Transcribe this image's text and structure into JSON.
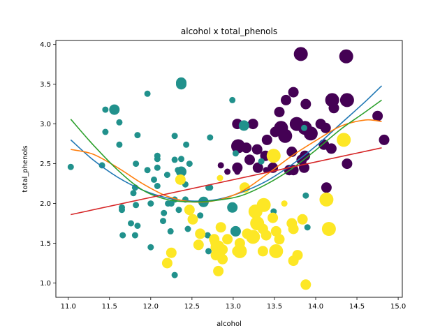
{
  "chart_data": {
    "type": "scatter",
    "title": "alcohol x total_phenols",
    "xlabel": "alcohol",
    "ylabel": "total_phenols",
    "xlim": [
      10.85,
      15.05
    ],
    "ylim": [
      0.82,
      4.05
    ],
    "xticks": [
      11.0,
      11.5,
      12.0,
      12.5,
      13.0,
      13.5,
      14.0,
      14.5,
      15.0
    ],
    "xtick_labels": [
      "11.0",
      "11.5",
      "12.0",
      "12.5",
      "13.0",
      "13.5",
      "14.0",
      "14.5",
      "15.0"
    ],
    "yticks": [
      1.0,
      1.5,
      2.0,
      2.5,
      3.0,
      3.5,
      4.0
    ],
    "ytick_labels": [
      "1.0",
      "1.5",
      "2.0",
      "2.5",
      "3.0",
      "3.5",
      "4.0"
    ],
    "grid": false,
    "legend": "none",
    "size_scale": "marker size varies per point",
    "series": [
      {
        "color": "#440154",
        "points": [
          {
            "x": 13.82,
            "y": 3.88,
            "s": "l"
          },
          {
            "x": 14.37,
            "y": 3.85,
            "s": "l"
          },
          {
            "x": 13.73,
            "y": 3.4,
            "s": "m"
          },
          {
            "x": 13.64,
            "y": 3.3,
            "s": "m"
          },
          {
            "x": 14.2,
            "y": 3.3,
            "s": "l"
          },
          {
            "x": 14.38,
            "y": 3.3,
            "s": "l"
          },
          {
            "x": 13.88,
            "y": 3.25,
            "s": "m"
          },
          {
            "x": 14.22,
            "y": 3.2,
            "s": "m"
          },
          {
            "x": 13.56,
            "y": 3.15,
            "s": "m"
          },
          {
            "x": 14.75,
            "y": 3.1,
            "s": "m"
          },
          {
            "x": 13.05,
            "y": 3.0,
            "s": "m"
          },
          {
            "x": 13.24,
            "y": 3.0,
            "s": "m"
          },
          {
            "x": 13.58,
            "y": 2.95,
            "s": "l"
          },
          {
            "x": 13.77,
            "y": 3.0,
            "s": "l"
          },
          {
            "x": 13.87,
            "y": 2.95,
            "s": "l"
          },
          {
            "x": 14.06,
            "y": 3.0,
            "s": "m"
          },
          {
            "x": 14.12,
            "y": 2.95,
            "s": "m"
          },
          {
            "x": 13.94,
            "y": 2.88,
            "s": "l"
          },
          {
            "x": 13.51,
            "y": 2.9,
            "s": "m"
          },
          {
            "x": 13.63,
            "y": 2.85,
            "s": "l"
          },
          {
            "x": 13.41,
            "y": 2.8,
            "s": "m"
          },
          {
            "x": 14.83,
            "y": 2.8,
            "s": "m"
          },
          {
            "x": 14.1,
            "y": 2.74,
            "s": "m"
          },
          {
            "x": 13.06,
            "y": 2.72,
            "s": "l"
          },
          {
            "x": 13.16,
            "y": 2.7,
            "s": "m"
          },
          {
            "x": 13.29,
            "y": 2.68,
            "s": "m"
          },
          {
            "x": 14.19,
            "y": 2.69,
            "s": "m"
          },
          {
            "x": 13.71,
            "y": 2.65,
            "s": "m"
          },
          {
            "x": 13.39,
            "y": 2.6,
            "s": "m"
          },
          {
            "x": 13.87,
            "y": 2.6,
            "s": "m"
          },
          {
            "x": 13.83,
            "y": 2.55,
            "s": "m"
          },
          {
            "x": 13.2,
            "y": 2.55,
            "s": "m"
          },
          {
            "x": 14.38,
            "y": 2.5,
            "s": "m"
          },
          {
            "x": 13.3,
            "y": 2.45,
            "s": "m"
          },
          {
            "x": 13.05,
            "y": 2.45,
            "s": "m"
          },
          {
            "x": 13.48,
            "y": 2.45,
            "s": "m"
          },
          {
            "x": 13.86,
            "y": 2.45,
            "s": "m"
          },
          {
            "x": 12.85,
            "y": 2.48,
            "s": "s"
          },
          {
            "x": 13.68,
            "y": 2.42,
            "s": "m"
          },
          {
            "x": 12.93,
            "y": 2.4,
            "s": "s"
          },
          {
            "x": 13.05,
            "y": 2.4,
            "s": "s"
          },
          {
            "x": 13.4,
            "y": 2.42,
            "s": "s"
          },
          {
            "x": 13.73,
            "y": 2.42,
            "s": "m"
          },
          {
            "x": 14.13,
            "y": 2.2,
            "s": "m"
          }
        ]
      },
      {
        "color": "#21918c",
        "points": [
          {
            "x": 12.37,
            "y": 3.52,
            "s": "m"
          },
          {
            "x": 12.37,
            "y": 3.5,
            "s": "m"
          },
          {
            "x": 11.96,
            "y": 3.38,
            "s": "s"
          },
          {
            "x": 12.99,
            "y": 3.3,
            "s": "s"
          },
          {
            "x": 11.45,
            "y": 3.18,
            "s": "s"
          },
          {
            "x": 11.56,
            "y": 3.18,
            "s": "m"
          },
          {
            "x": 11.62,
            "y": 3.02,
            "s": "s"
          },
          {
            "x": 13.13,
            "y": 2.98,
            "s": "m"
          },
          {
            "x": 13.86,
            "y": 2.95,
            "s": "s"
          },
          {
            "x": 11.45,
            "y": 2.9,
            "s": "s"
          },
          {
            "x": 11.84,
            "y": 2.86,
            "s": "s"
          },
          {
            "x": 12.29,
            "y": 2.85,
            "s": "s"
          },
          {
            "x": 12.72,
            "y": 2.83,
            "s": "s"
          },
          {
            "x": 11.62,
            "y": 2.74,
            "s": "s"
          },
          {
            "x": 12.43,
            "y": 2.74,
            "s": "s"
          },
          {
            "x": 13.03,
            "y": 2.63,
            "s": "s"
          },
          {
            "x": 12.08,
            "y": 2.6,
            "s": "s"
          },
          {
            "x": 12.08,
            "y": 2.56,
            "s": "s"
          },
          {
            "x": 12.29,
            "y": 2.55,
            "s": "s"
          },
          {
            "x": 12.37,
            "y": 2.56,
            "s": "s"
          },
          {
            "x": 13.34,
            "y": 2.53,
            "s": "s"
          },
          {
            "x": 11.82,
            "y": 2.5,
            "s": "s"
          },
          {
            "x": 12.47,
            "y": 2.5,
            "s": "s"
          },
          {
            "x": 11.41,
            "y": 2.48,
            "s": "s"
          },
          {
            "x": 11.03,
            "y": 2.46,
            "s": "s"
          },
          {
            "x": 12.08,
            "y": 2.45,
            "s": "s"
          },
          {
            "x": 12.33,
            "y": 2.42,
            "s": "s"
          },
          {
            "x": 12.37,
            "y": 2.4,
            "s": "m"
          },
          {
            "x": 11.96,
            "y": 2.42,
            "s": "s"
          },
          {
            "x": 12.2,
            "y": 2.36,
            "s": "s"
          },
          {
            "x": 12.04,
            "y": 2.3,
            "s": "s"
          },
          {
            "x": 12.42,
            "y": 2.24,
            "s": "s"
          },
          {
            "x": 12.08,
            "y": 2.22,
            "s": "s"
          },
          {
            "x": 12.7,
            "y": 2.2,
            "s": "s"
          },
          {
            "x": 12.72,
            "y": 2.2,
            "s": "s"
          },
          {
            "x": 11.81,
            "y": 2.2,
            "s": "s"
          },
          {
            "x": 11.79,
            "y": 2.13,
            "s": "s"
          },
          {
            "x": 12.29,
            "y": 2.05,
            "s": "s"
          },
          {
            "x": 12.42,
            "y": 2.05,
            "s": "s"
          },
          {
            "x": 12.64,
            "y": 2.02,
            "s": "m"
          },
          {
            "x": 12.0,
            "y": 2.0,
            "s": "s"
          },
          {
            "x": 11.82,
            "y": 1.98,
            "s": "s"
          },
          {
            "x": 12.21,
            "y": 2.0,
            "s": "s"
          },
          {
            "x": 12.25,
            "y": 2.0,
            "s": "s"
          },
          {
            "x": 11.65,
            "y": 1.95,
            "s": "s"
          },
          {
            "x": 12.99,
            "y": 1.95,
            "s": "m"
          },
          {
            "x": 11.65,
            "y": 1.92,
            "s": "s"
          },
          {
            "x": 12.34,
            "y": 1.92,
            "s": "s"
          },
          {
            "x": 13.49,
            "y": 1.9,
            "s": "s"
          },
          {
            "x": 12.16,
            "y": 1.88,
            "s": "s"
          },
          {
            "x": 12.6,
            "y": 1.85,
            "s": "s"
          },
          {
            "x": 12.15,
            "y": 1.78,
            "s": "s"
          },
          {
            "x": 11.76,
            "y": 1.75,
            "s": "s"
          },
          {
            "x": 11.84,
            "y": 1.72,
            "s": "s"
          },
          {
            "x": 12.45,
            "y": 1.68,
            "s": "s"
          },
          {
            "x": 12.24,
            "y": 1.65,
            "s": "s"
          },
          {
            "x": 13.03,
            "y": 1.65,
            "s": "m"
          },
          {
            "x": 11.66,
            "y": 1.6,
            "s": "s"
          },
          {
            "x": 11.81,
            "y": 1.6,
            "s": "s"
          },
          {
            "x": 12.69,
            "y": 1.6,
            "s": "s"
          },
          {
            "x": 12.0,
            "y": 1.45,
            "s": "s"
          },
          {
            "x": 12.7,
            "y": 1.4,
            "s": "s"
          },
          {
            "x": 12.29,
            "y": 1.1,
            "s": "s"
          },
          {
            "x": 13.9,
            "y": 1.7,
            "s": "s"
          },
          {
            "x": 13.88,
            "y": 2.1,
            "s": "s"
          }
        ]
      },
      {
        "color": "#fde725",
        "points": [
          {
            "x": 13.49,
            "y": 2.6,
            "s": "l"
          },
          {
            "x": 14.34,
            "y": 2.8,
            "s": "l"
          },
          {
            "x": 12.36,
            "y": 2.3,
            "s": "m"
          },
          {
            "x": 12.84,
            "y": 2.32,
            "s": "s"
          },
          {
            "x": 13.14,
            "y": 2.2,
            "s": "m"
          },
          {
            "x": 14.13,
            "y": 2.05,
            "s": "l"
          },
          {
            "x": 13.62,
            "y": 2.0,
            "s": "s"
          },
          {
            "x": 13.37,
            "y": 1.98,
            "s": "l"
          },
          {
            "x": 13.27,
            "y": 1.9,
            "s": "l"
          },
          {
            "x": 12.47,
            "y": 1.92,
            "s": "m"
          },
          {
            "x": 12.51,
            "y": 1.8,
            "s": "m"
          },
          {
            "x": 13.48,
            "y": 1.82,
            "s": "m"
          },
          {
            "x": 13.84,
            "y": 1.8,
            "s": "m"
          },
          {
            "x": 13.71,
            "y": 1.75,
            "s": "m"
          },
          {
            "x": 13.29,
            "y": 1.75,
            "s": "l"
          },
          {
            "x": 13.36,
            "y": 1.68,
            "s": "m"
          },
          {
            "x": 12.85,
            "y": 1.7,
            "s": "m"
          },
          {
            "x": 13.52,
            "y": 1.65,
            "s": "m"
          },
          {
            "x": 14.16,
            "y": 1.68,
            "s": "l"
          },
          {
            "x": 13.73,
            "y": 1.68,
            "s": "m"
          },
          {
            "x": 12.6,
            "y": 1.62,
            "s": "m"
          },
          {
            "x": 13.17,
            "y": 1.62,
            "s": "m"
          },
          {
            "x": 13.24,
            "y": 1.58,
            "s": "l"
          },
          {
            "x": 13.4,
            "y": 1.6,
            "s": "m"
          },
          {
            "x": 13.56,
            "y": 1.55,
            "s": "m"
          },
          {
            "x": 12.93,
            "y": 1.55,
            "s": "m"
          },
          {
            "x": 12.77,
            "y": 1.55,
            "s": "m"
          },
          {
            "x": 13.08,
            "y": 1.5,
            "s": "m"
          },
          {
            "x": 12.58,
            "y": 1.48,
            "s": "m"
          },
          {
            "x": 12.81,
            "y": 1.45,
            "s": "l"
          },
          {
            "x": 12.87,
            "y": 1.42,
            "s": "m"
          },
          {
            "x": 13.05,
            "y": 1.4,
            "s": "m"
          },
          {
            "x": 13.08,
            "y": 1.4,
            "s": "l"
          },
          {
            "x": 13.36,
            "y": 1.4,
            "s": "m"
          },
          {
            "x": 13.5,
            "y": 1.4,
            "s": "m"
          },
          {
            "x": 13.52,
            "y": 1.4,
            "s": "l"
          },
          {
            "x": 12.25,
            "y": 1.38,
            "s": "m"
          },
          {
            "x": 12.79,
            "y": 1.35,
            "s": "m"
          },
          {
            "x": 13.78,
            "y": 1.35,
            "s": "m"
          },
          {
            "x": 13.73,
            "y": 1.28,
            "s": "m"
          },
          {
            "x": 12.87,
            "y": 1.3,
            "s": "m"
          },
          {
            "x": 12.2,
            "y": 1.25,
            "s": "m"
          },
          {
            "x": 12.82,
            "y": 1.15,
            "s": "m"
          },
          {
            "x": 13.88,
            "y": 0.98,
            "s": "m"
          },
          {
            "x": 12.76,
            "y": 1.5,
            "s": "s"
          }
        ]
      }
    ],
    "fit_lines": [
      {
        "color": "#1f77b4",
        "x": [
          11.03,
          11.3,
          11.6,
          11.9,
          12.2,
          12.5,
          12.8,
          13.1,
          13.4,
          13.7,
          14.0,
          14.3,
          14.6,
          14.8
        ],
        "y": [
          2.8,
          2.55,
          2.33,
          2.17,
          2.07,
          2.03,
          2.05,
          2.14,
          2.28,
          2.48,
          2.72,
          3.0,
          3.28,
          3.48
        ]
      },
      {
        "color": "#ff7f0e",
        "x": [
          11.03,
          11.3,
          11.6,
          11.9,
          12.2,
          12.5,
          12.8,
          13.1,
          13.4,
          13.7,
          14.0,
          14.3,
          14.6,
          14.8
        ],
        "y": [
          2.68,
          2.62,
          2.45,
          2.25,
          2.09,
          2.02,
          2.04,
          2.15,
          2.36,
          2.59,
          2.79,
          2.97,
          3.05,
          3.03
        ]
      },
      {
        "color": "#2ca02c",
        "x": [
          11.03,
          11.3,
          11.6,
          11.9,
          12.2,
          12.5,
          12.8,
          13.1,
          13.4,
          13.7,
          14.0,
          14.3,
          14.6,
          14.8
        ],
        "y": [
          3.06,
          2.74,
          2.42,
          2.17,
          2.05,
          2.02,
          2.04,
          2.1,
          2.24,
          2.43,
          2.67,
          2.93,
          3.15,
          3.3
        ]
      },
      {
        "color": "#d62728",
        "x": [
          11.03,
          14.8
        ],
        "y": [
          1.86,
          2.7
        ]
      }
    ]
  }
}
